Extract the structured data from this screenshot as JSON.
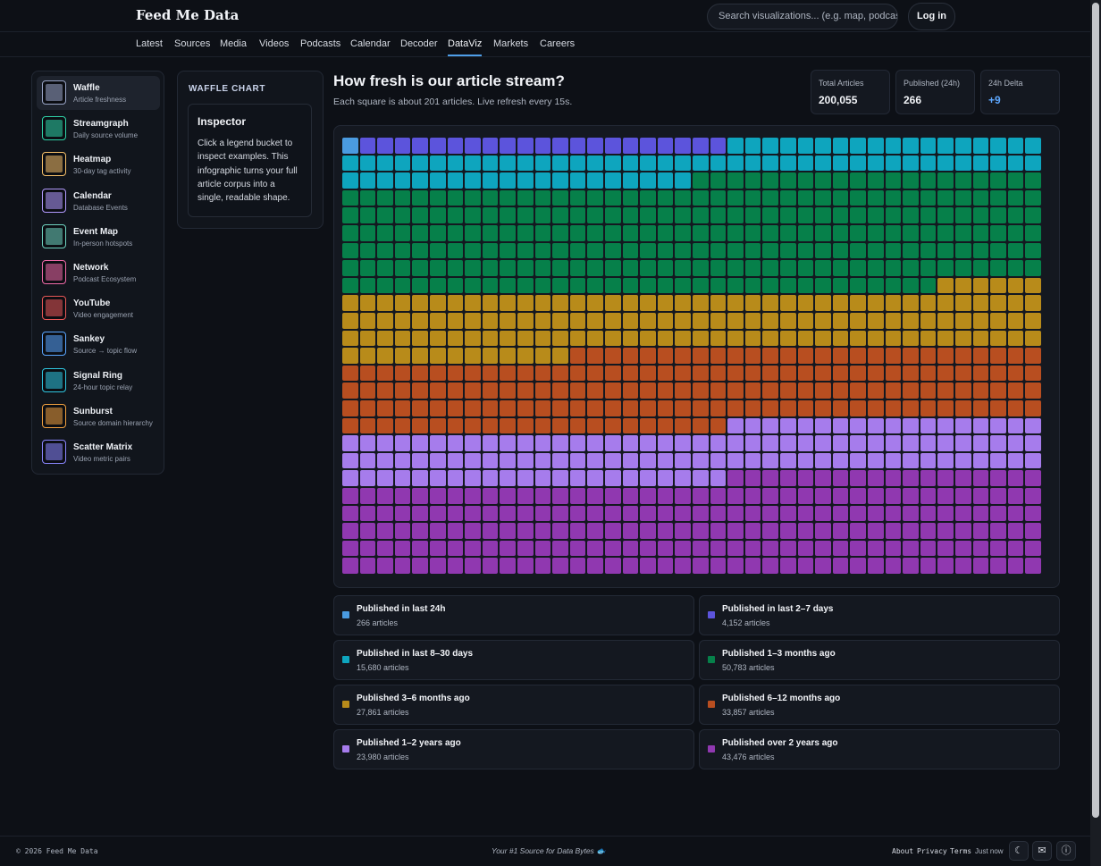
{
  "brand": "Feed Me Data",
  "search": {
    "placeholder": "Search visualizations... (e.g. map, podcast)"
  },
  "login_label": "Log in",
  "nav": [
    "Latest",
    "Sources",
    "Media",
    "Videos",
    "Podcasts",
    "Calendar",
    "Decoder",
    "DataViz",
    "Markets",
    "Careers"
  ],
  "nav_active": "DataViz",
  "sidebar": [
    {
      "title": "Waffle",
      "sub": "Article freshness",
      "icon": "waffle-thumb-icon",
      "color": "#9aa6c8",
      "active": true
    },
    {
      "title": "Streamgraph",
      "sub": "Daily source volume",
      "icon": "streamgraph-thumb-icon",
      "color": "#2fd3a8"
    },
    {
      "title": "Heatmap",
      "sub": "30-day tag activity",
      "icon": "heatmap-thumb-icon",
      "color": "#f5c06a"
    },
    {
      "title": "Calendar",
      "sub": "Database Events",
      "icon": "calendar-thumb-icon",
      "color": "#b39bff"
    },
    {
      "title": "Event Map",
      "sub": "In-person hotspots",
      "icon": "map-thumb-icon",
      "color": "#6fd3c0"
    },
    {
      "title": "Network",
      "sub": "Podcast Ecosystem",
      "icon": "network-thumb-icon",
      "color": "#f06aa8"
    },
    {
      "title": "YouTube",
      "sub": "Video engagement",
      "icon": "youtube-thumb-icon",
      "color": "#e85858"
    },
    {
      "title": "Sankey",
      "sub": "Source → topic flow",
      "icon": "sankey-thumb-icon",
      "color": "#5aa6ff"
    },
    {
      "title": "Signal Ring",
      "sub": "24-hour topic relay",
      "icon": "signal-ring-thumb-icon",
      "color": "#2fc6e0"
    },
    {
      "title": "Sunburst",
      "sub": "Source domain hierarchy",
      "icon": "sunburst-thumb-icon",
      "color": "#f0a040"
    },
    {
      "title": "Scatter Matrix",
      "sub": "Video metric pairs",
      "icon": "scatter-matrix-thumb-icon",
      "color": "#8b86ff"
    }
  ],
  "panel": {
    "label": "WAFFLE CHART",
    "inspector_title": "Inspector",
    "inspector_body": "Click a legend bucket to inspect examples. This infographic turns your full article corpus into a single, readable shape."
  },
  "main": {
    "title": "How fresh is our article stream?",
    "subtitle": "Each square is about 201 articles. Live refresh every 15s."
  },
  "stats": [
    {
      "label": "Total Articles",
      "value": "200,055"
    },
    {
      "label": "Published (24h)",
      "value": "266"
    },
    {
      "label": "24h Delta",
      "value": "+9",
      "accent": "#5ea8ff"
    }
  ],
  "chart_data": {
    "type": "waffle",
    "grid": {
      "columns": 40,
      "rows": 25
    },
    "articles_per_square": 201,
    "total": 200055,
    "series": [
      {
        "name": "Published in last 24h",
        "count_label": "266 articles",
        "value": 266,
        "squares": 1,
        "color": "#4a9be0"
      },
      {
        "name": "Published in last 2–7 days",
        "count_label": "4,152 articles",
        "value": 4152,
        "squares": 21,
        "color": "#5c54dc"
      },
      {
        "name": "Published in last 8–30 days",
        "count_label": "15,680 articles",
        "value": 15680,
        "squares": 78,
        "color": "#0ea5be"
      },
      {
        "name": "Published 1–3 months ago",
        "count_label": "50,783 articles",
        "value": 50783,
        "squares": 254,
        "color": "#06804a"
      },
      {
        "name": "Published 3–6 months ago",
        "count_label": "27,861 articles",
        "value": 27861,
        "squares": 139,
        "color": "#b88b1a"
      },
      {
        "name": "Published 6–12 months ago",
        "count_label": "33,857 articles",
        "value": 33857,
        "squares": 169,
        "color": "#b84e20"
      },
      {
        "name": "Published 1–2 years ago",
        "count_label": "23,980 articles",
        "value": 23980,
        "squares": 120,
        "color": "#a67cec"
      },
      {
        "name": "Published over 2 years ago",
        "count_label": "43,476 articles",
        "value": 43476,
        "squares": 218,
        "color": "#9038b0"
      }
    ]
  },
  "footer": {
    "copyright": "© 2026 Feed Me Data",
    "tagline": "Your #1 Source for Data Bytes 🐟",
    "links": [
      "About",
      "Privacy",
      "Terms"
    ],
    "status": "Just now"
  }
}
